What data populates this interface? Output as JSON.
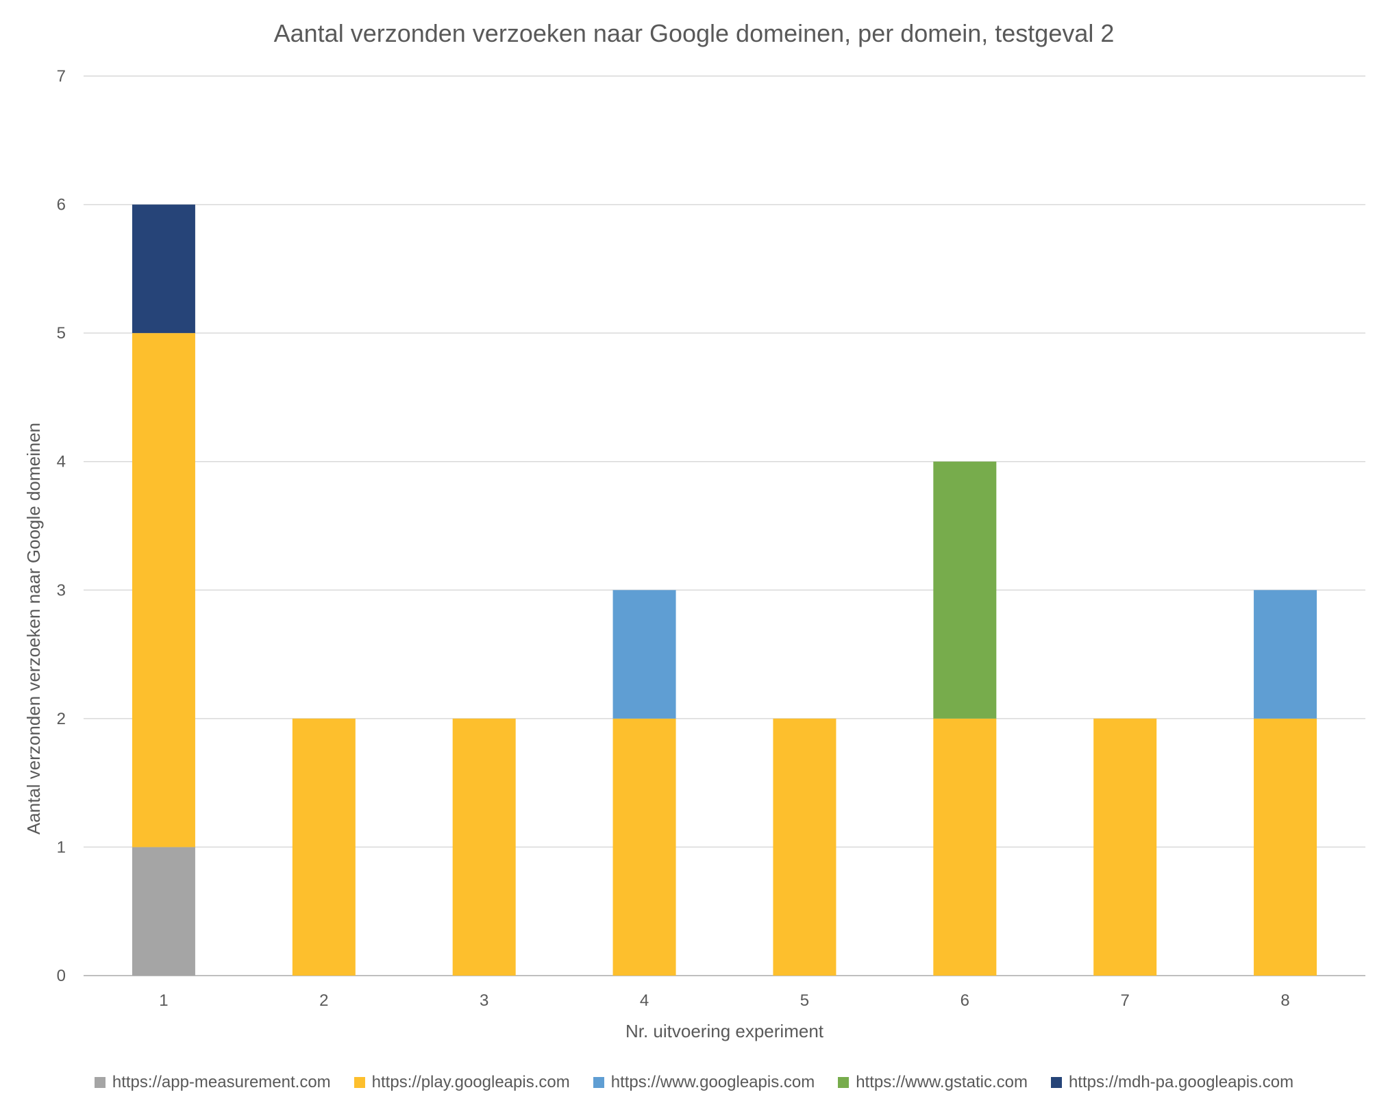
{
  "chart_data": {
    "type": "bar",
    "stacked": true,
    "title": "Aantal verzonden verzoeken naar Google domeinen, per domein, testgeval 2",
    "xlabel": "Nr. uitvoering experiment",
    "ylabel": "Aantal verzonden verzoeken naar Google domeinen",
    "categories": [
      "1",
      "2",
      "3",
      "4",
      "5",
      "6",
      "7",
      "8"
    ],
    "ylim": [
      0,
      7
    ],
    "yticks": [
      "0",
      "1",
      "2",
      "3",
      "4",
      "5",
      "6",
      "7"
    ],
    "grid": true,
    "legend_position": "bottom",
    "series": [
      {
        "name": "https://app-measurement.com",
        "color": "#A5A5A5",
        "values": [
          1,
          0,
          0,
          0,
          0,
          0,
          0,
          0
        ]
      },
      {
        "name": "https://play.googleapis.com",
        "color": "#FDBF2D",
        "values": [
          4,
          2,
          2,
          2,
          2,
          2,
          2,
          2
        ]
      },
      {
        "name": "https://www.googleapis.com",
        "color": "#5F9ED3",
        "values": [
          0,
          0,
          0,
          1,
          0,
          0,
          0,
          1
        ]
      },
      {
        "name": "https://www.gstatic.com",
        "color": "#77AC4C",
        "values": [
          0,
          0,
          0,
          0,
          0,
          2,
          0,
          0
        ]
      },
      {
        "name": "https://mdh-pa.googleapis.com",
        "color": "#264478",
        "values": [
          1,
          0,
          0,
          0,
          0,
          0,
          0,
          0
        ]
      }
    ]
  }
}
